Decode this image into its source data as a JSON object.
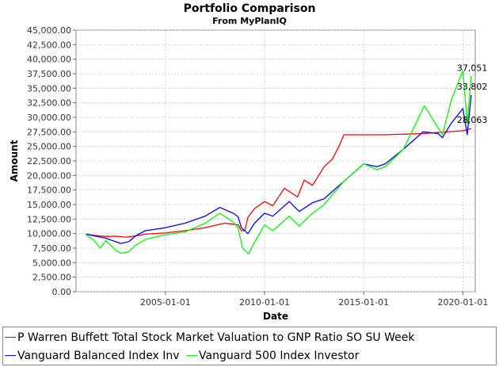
{
  "colors": {
    "background": "#ffffff",
    "plot_background": "#ffffff",
    "grid": "#c8c8c8",
    "series": [
      "#ff0000",
      "#0000ff",
      "#00ff00"
    ]
  },
  "chart_data": {
    "type": "line",
    "title": "Portfolio Comparison",
    "subtitle": "From MyPlanIQ",
    "xlabel": "Date",
    "ylabel": "Amount",
    "xlim": [
      "2000-07-01",
      "2020-08-15"
    ],
    "ylim": [
      0,
      45000
    ],
    "y_ticks": [
      "0.00",
      "2,500.00",
      "5,000.00",
      "7,500.00",
      "10,000.00",
      "12,500.00",
      "15,000.00",
      "17,500.00",
      "20,000.00",
      "22,500.00",
      "25,000.00",
      "27,500.00",
      "30,000.00",
      "32,500.00",
      "35,000.00",
      "37,500.00",
      "40,000.00",
      "42,500.00",
      "45,000.00"
    ],
    "x_ticks": [
      "2005-01-01",
      "2010-01-01",
      "2015-01-01",
      "2020-01-01"
    ],
    "grid": true,
    "legend_position": "bottom",
    "series": [
      {
        "name": "P Warren Buffett Total Stock Market Valuation to GNP Ratio SO SU Week",
        "color": "#ff0000",
        "end_label": "28,063",
        "x": [
          "2001-01-01",
          "2001-06-01",
          "2002-01-01",
          "2002-07-01",
          "2003-01-01",
          "2003-07-01",
          "2004-01-01",
          "2005-01-01",
          "2006-01-01",
          "2007-01-01",
          "2008-01-01",
          "2008-09-01",
          "2008-11-01",
          "2009-01-01",
          "2009-03-01",
          "2009-07-01",
          "2010-01-01",
          "2010-06-01",
          "2011-01-01",
          "2011-09-01",
          "2012-01-01",
          "2012-06-01",
          "2013-01-01",
          "2013-06-01",
          "2013-10-01",
          "2014-01-01",
          "2016-01-01",
          "2018-01-01",
          "2020-01-01",
          "2020-06-01"
        ],
        "y": [
          9900,
          9700,
          9500,
          9550,
          9400,
          9600,
          9900,
          10100,
          10500,
          11000,
          11800,
          11500,
          10500,
          10500,
          12800,
          14300,
          15500,
          14800,
          17800,
          16300,
          19200,
          18300,
          21500,
          22800,
          25000,
          27000,
          27000,
          27200,
          27700,
          28063
        ]
      },
      {
        "name": "Vanguard Balanced Index Inv",
        "color": "#0000ff",
        "end_label": "33,802",
        "x": [
          "2001-01-01",
          "2001-06-01",
          "2002-01-01",
          "2002-10-01",
          "2003-03-01",
          "2003-07-01",
          "2004-01-01",
          "2005-01-01",
          "2006-01-01",
          "2007-01-01",
          "2007-10-01",
          "2008-06-01",
          "2008-09-01",
          "2008-11-01",
          "2009-03-01",
          "2009-07-01",
          "2010-01-01",
          "2010-06-01",
          "2011-04-01",
          "2011-10-01",
          "2012-06-01",
          "2013-01-01",
          "2014-01-01",
          "2015-01-01",
          "2015-09-01",
          "2016-02-01",
          "2017-01-01",
          "2018-01-01",
          "2018-10-01",
          "2018-12-20",
          "2019-06-01",
          "2020-01-01",
          "2020-03-20",
          "2020-06-01"
        ],
        "y": [
          9900,
          9600,
          9200,
          8300,
          8600,
          9600,
          10500,
          11000,
          11800,
          13000,
          14500,
          13500,
          12900,
          11000,
          10000,
          11800,
          13500,
          13000,
          15500,
          13800,
          15300,
          16000,
          19000,
          22000,
          21500,
          22000,
          24500,
          27500,
          27200,
          26500,
          29000,
          31500,
          27000,
          33802
        ]
      },
      {
        "name": "Vanguard 500 Index Investor",
        "color": "#00ff00",
        "end_label": "37,051",
        "x": [
          "2001-01-01",
          "2001-06-01",
          "2001-09-20",
          "2002-01-01",
          "2002-07-20",
          "2002-10-10",
          "2003-03-01",
          "2003-07-01",
          "2004-01-01",
          "2005-01-01",
          "2006-01-01",
          "2007-01-01",
          "2007-10-01",
          "2008-06-01",
          "2008-09-01",
          "2008-11-20",
          "2009-03-09",
          "2009-07-01",
          "2010-01-01",
          "2010-06-01",
          "2011-04-01",
          "2011-10-01",
          "2012-06-01",
          "2013-01-01",
          "2014-01-01",
          "2015-01-01",
          "2015-09-01",
          "2016-02-01",
          "2017-01-01",
          "2018-01-20",
          "2018-12-20",
          "2019-06-01",
          "2020-01-01",
          "2020-03-20",
          "2020-06-01"
        ],
        "y": [
          9800,
          8800,
          7500,
          8800,
          7000,
          6600,
          6900,
          8000,
          9000,
          9800,
          10300,
          11800,
          13500,
          12000,
          11000,
          7500,
          6500,
          8500,
          11500,
          10500,
          13000,
          11300,
          13500,
          15000,
          19000,
          22000,
          21000,
          21500,
          24500,
          32000,
          27000,
          33000,
          38000,
          29000,
          37051
        ]
      }
    ]
  }
}
